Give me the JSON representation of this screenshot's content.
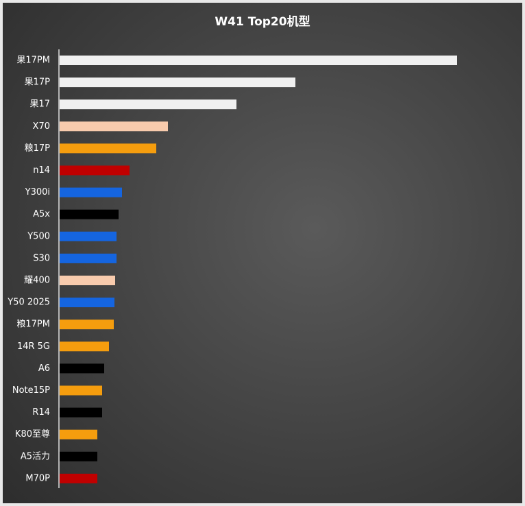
{
  "chart_data": {
    "type": "bar",
    "orientation": "horizontal",
    "title": "W41 Top20机型",
    "categories": [
      "果17PM",
      "果17P",
      "果17",
      "X70",
      "粮17P",
      "n14",
      "Y300i",
      "A5x",
      "Y500",
      "S30",
      "耀400",
      "Y50 2025",
      "粮17PM",
      "14R 5G",
      "A6",
      "Note15P",
      "R14",
      "K80至尊",
      "A5活力",
      "M70P"
    ],
    "values": [
      580,
      344,
      258,
      158,
      141,
      102,
      91,
      86,
      83,
      83,
      81,
      80,
      79,
      72,
      65,
      62,
      62,
      55,
      55,
      55
    ],
    "colors": [
      "#f0f0f0",
      "#f0f0f0",
      "#f0f0f0",
      "#f8cbad",
      "#f59d0e",
      "#c00000",
      "#1565e0",
      "#000000",
      "#1565e0",
      "#1565e0",
      "#f8cbad",
      "#1565e0",
      "#f59d0e",
      "#f59d0e",
      "#000000",
      "#f59d0e",
      "#000000",
      "#f59d0e",
      "#000000",
      "#c00000"
    ]
  }
}
